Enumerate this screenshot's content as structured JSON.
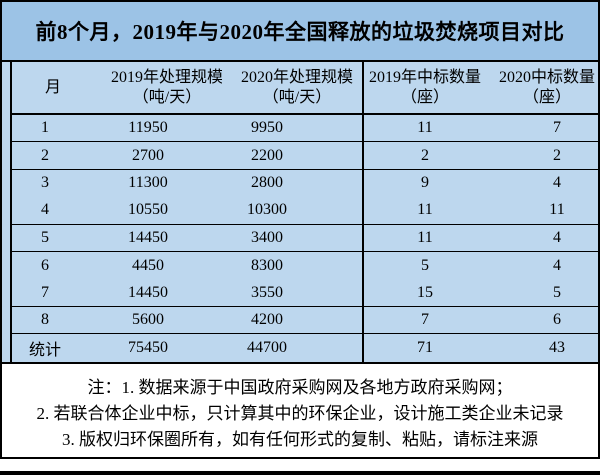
{
  "title": "前8个月，2019年与2020年全国释放的垃圾焚烧项目对比",
  "headers": {
    "month": "月",
    "cols": [
      {
        "line1": "2019年处理规模",
        "line2": "（吨/天）"
      },
      {
        "line1": "2020年处理规模",
        "line2": "（吨/天）"
      },
      {
        "line1": "2019年中标数量",
        "line2": "（座）"
      },
      {
        "line1": "2020中标数量",
        "line2": "（座）"
      }
    ]
  },
  "notes": [
    "注：1. 数据来源于中国政府采购网及各地方政府采购网；",
    "2. 若联合体企业中标，只计算其中的环保企业，设计施工类企业未记录",
    "3. 版权归环保圈所有，如有任何形式的复制、粘贴，请标注来源"
  ],
  "colors": {
    "title_bg": "#9CC3E6",
    "table_bg": "#BDD7EE",
    "border": "#000000",
    "notes_bg": "#FFFFFF",
    "text": "#000000"
  },
  "chart_data": {
    "type": "table",
    "title": "前8个月，2019年与2020年全国释放的垃圾焚烧项目对比",
    "columns": [
      "月",
      "2019年处理规模（吨/天）",
      "2020年处理规模（吨/天）",
      "2019年中标数量（座）",
      "2020中标数量（座）"
    ],
    "rows": [
      [
        "1",
        11950,
        9950,
        11,
        7
      ],
      [
        "2",
        2700,
        2200,
        2,
        2
      ],
      [
        "3",
        11300,
        2800,
        9,
        4
      ],
      [
        "4",
        10550,
        10300,
        11,
        11
      ],
      [
        "5",
        14450,
        3400,
        11,
        4
      ],
      [
        "6",
        4450,
        8300,
        5,
        4
      ],
      [
        "7",
        14450,
        3550,
        15,
        5
      ],
      [
        "8",
        5600,
        4200,
        7,
        6
      ],
      [
        "统计",
        75450,
        44700,
        71,
        43
      ]
    ],
    "total_row_label": "统计",
    "notes": [
      "注：1. 数据来源于中国政府采购网及各地方政府采购网；",
      "2. 若联合体企业中标，只计算其中的环保企业，设计施工类企业未记录",
      "3. 版权归环保圈所有，如有任何形式的复制、粘贴，请标注来源"
    ]
  }
}
